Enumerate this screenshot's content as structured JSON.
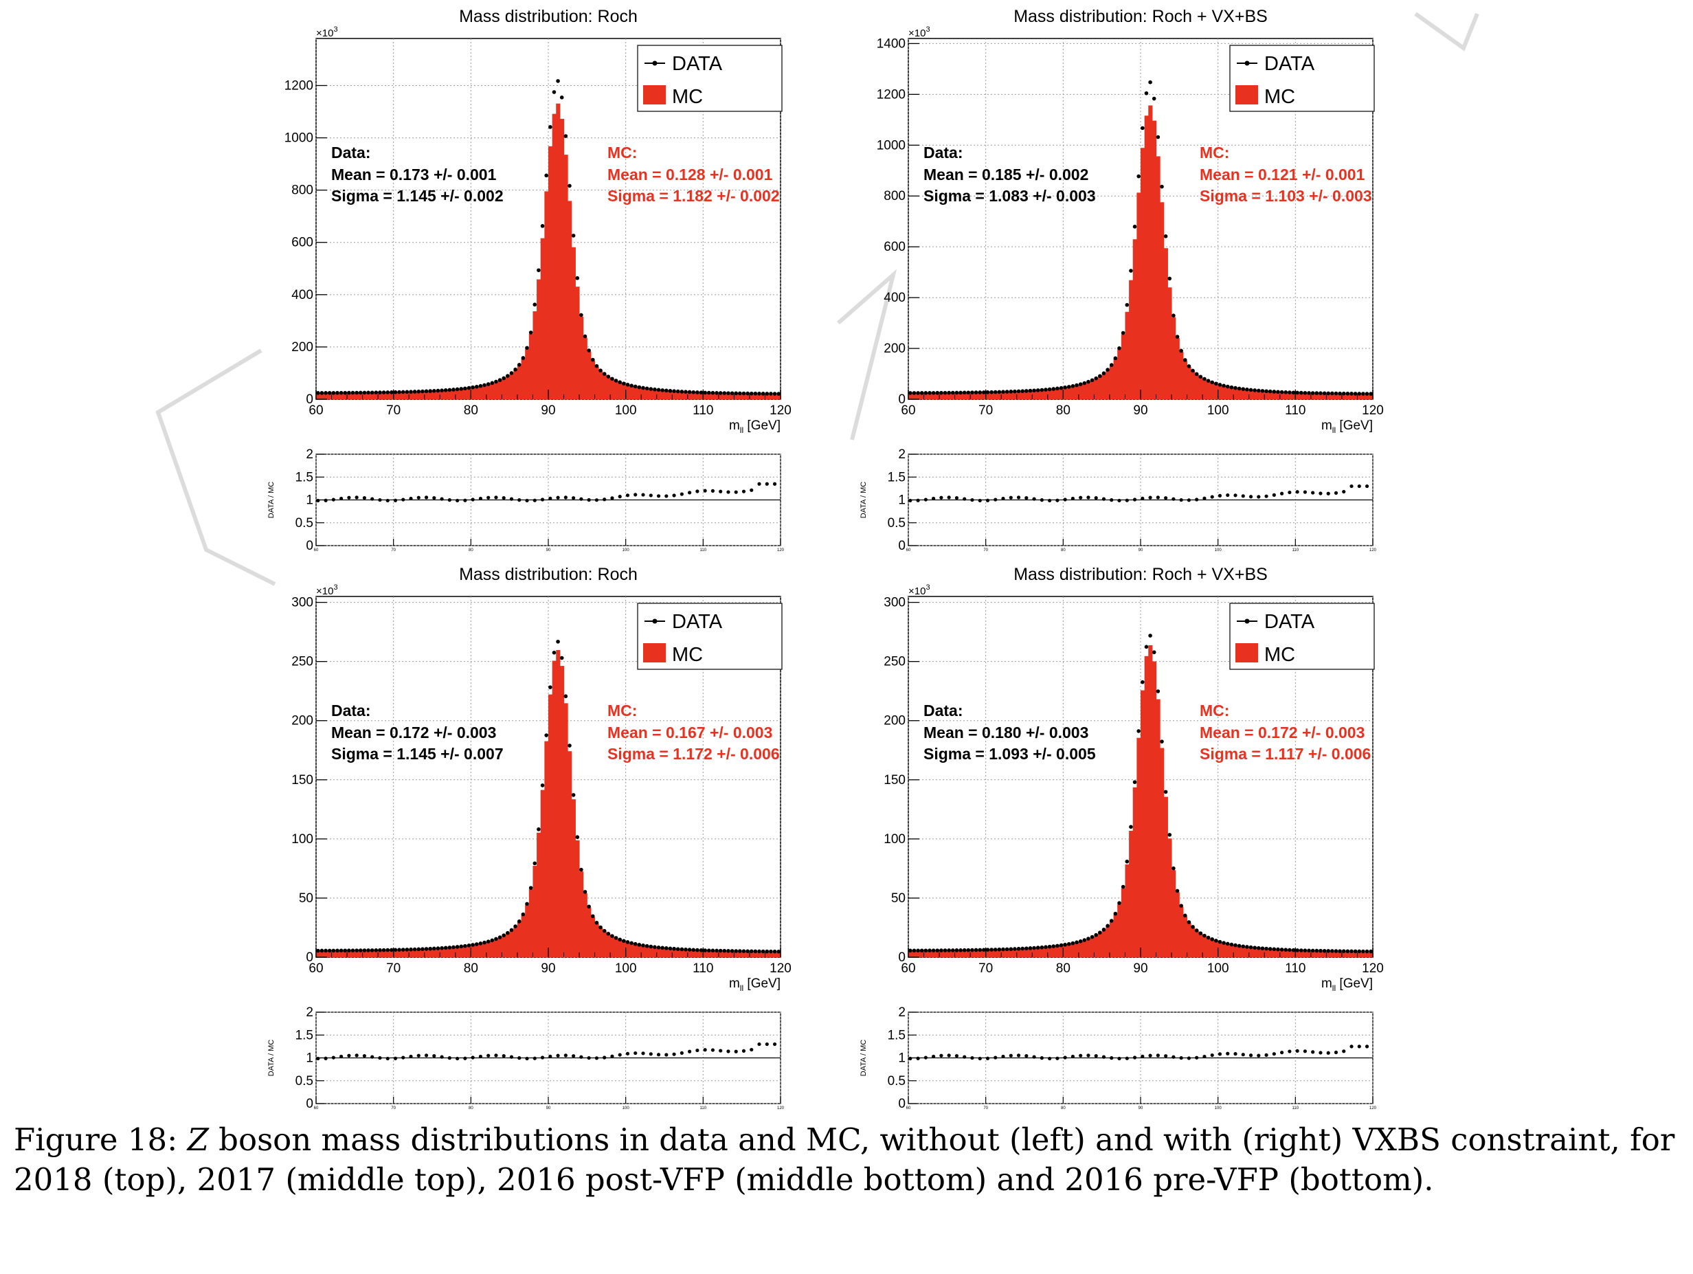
{
  "chart_data": [
    {
      "type": "bar",
      "title": "Mass distribution: Roch",
      "xlabel_main": "m",
      "xlabel_sub": "ll",
      "xlabel_unit": " [GeV]",
      "xticks": [
        "60",
        "70",
        "80",
        "90",
        "100",
        "110",
        "120"
      ],
      "xlim": [
        60,
        120
      ],
      "yticks": [
        "0",
        "200",
        "400",
        "600",
        "800",
        "1000",
        "1200"
      ],
      "ylim": [
        0,
        1380
      ],
      "yexp": "×10",
      "yexp_power": "3",
      "peak_data": 1200,
      "peak_mc": 1115,
      "series": [
        {
          "name": "DATA"
        },
        {
          "name": "MC"
        }
      ],
      "stats_data": {
        "title": "Data:",
        "mean": "Mean = 0.173 +/- 0.001",
        "sigma": "Sigma = 1.145 +/- 0.002"
      },
      "stats_mc": {
        "title": "MC:",
        "mean": "Mean = 0.128 +/- 0.001",
        "sigma": "Sigma = 1.182 +/- 0.002"
      },
      "ratio": {
        "ylabel": "DATA / MC",
        "yticks": [
          "0",
          "0.5",
          "1",
          "1.5",
          "2"
        ],
        "ylim": [
          0,
          2
        ],
        "high_end": 1.35
      }
    },
    {
      "type": "bar",
      "title": "Mass distribution: Roch + VX+BS",
      "xlabel_main": "m",
      "xlabel_sub": "ll",
      "xlabel_unit": " [GeV]",
      "xticks": [
        "60",
        "70",
        "80",
        "90",
        "100",
        "110",
        "120"
      ],
      "xlim": [
        60,
        120
      ],
      "yticks": [
        "0",
        "200",
        "400",
        "600",
        "800",
        "1000",
        "1200",
        "1400"
      ],
      "ylim": [
        0,
        1420
      ],
      "yexp": "×10",
      "yexp_power": "3",
      "peak_data": 1230,
      "peak_mc": 1140,
      "series": [
        {
          "name": "DATA"
        },
        {
          "name": "MC"
        }
      ],
      "stats_data": {
        "title": "Data:",
        "mean": "Mean = 0.185 +/- 0.002",
        "sigma": "Sigma = 1.083 +/- 0.003"
      },
      "stats_mc": {
        "title": "MC:",
        "mean": "Mean = 0.121 +/- 0.001",
        "sigma": "Sigma = 1.103 +/- 0.003"
      },
      "ratio": {
        "ylabel": "DATA / MC",
        "yticks": [
          "0",
          "0.5",
          "1",
          "1.5",
          "2"
        ],
        "ylim": [
          0,
          2
        ],
        "high_end": 1.3
      }
    },
    {
      "type": "bar",
      "title": "Mass distribution: Roch",
      "xlabel_main": "m",
      "xlabel_sub": "ll",
      "xlabel_unit": " [GeV]",
      "xticks": [
        "60",
        "70",
        "80",
        "90",
        "100",
        "110",
        "120"
      ],
      "xlim": [
        60,
        120
      ],
      "yticks": [
        "0",
        "50",
        "100",
        "150",
        "200",
        "250",
        "300"
      ],
      "ylim": [
        0,
        305
      ],
      "yexp": "×10",
      "yexp_power": "3",
      "peak_data": 263,
      "peak_mc": 256,
      "series": [
        {
          "name": "DATA"
        },
        {
          "name": "MC"
        }
      ],
      "stats_data": {
        "title": "Data:",
        "mean": "Mean = 0.172 +/- 0.003",
        "sigma": "Sigma = 1.145 +/- 0.007"
      },
      "stats_mc": {
        "title": "MC:",
        "mean": "Mean = 0.167 +/- 0.003",
        "sigma": "Sigma = 1.172 +/- 0.006"
      },
      "ratio": {
        "ylabel": "DATA / MC",
        "yticks": [
          "0",
          "0.5",
          "1",
          "1.5",
          "2"
        ],
        "ylim": [
          0,
          2
        ],
        "high_end": 1.3
      }
    },
    {
      "type": "bar",
      "title": "Mass distribution: Roch + VX+BS",
      "xlabel_main": "m",
      "xlabel_sub": "ll",
      "xlabel_unit": " [GeV]",
      "xticks": [
        "60",
        "70",
        "80",
        "90",
        "100",
        "110",
        "120"
      ],
      "xlim": [
        60,
        120
      ],
      "yticks": [
        "0",
        "50",
        "100",
        "150",
        "200",
        "250",
        "300"
      ],
      "ylim": [
        0,
        305
      ],
      "yexp": "×10",
      "yexp_power": "3",
      "peak_data": 268,
      "peak_mc": 260,
      "series": [
        {
          "name": "DATA"
        },
        {
          "name": "MC"
        }
      ],
      "stats_data": {
        "title": "Data:",
        "mean": "Mean = 0.180 +/- 0.003",
        "sigma": "Sigma = 1.093 +/- 0.005"
      },
      "stats_mc": {
        "title": "MC:",
        "mean": "Mean = 0.172 +/- 0.003",
        "sigma": "Sigma = 1.117 +/- 0.006"
      },
      "ratio": {
        "ylabel": "DATA / MC",
        "yticks": [
          "0",
          "0.5",
          "1",
          "1.5",
          "2"
        ],
        "ylim": [
          0,
          2
        ],
        "high_end": 1.25
      }
    }
  ],
  "caption": {
    "label": "Figure 18:",
    "z": "Z",
    "text": " boson mass distributions in data and MC, without (left) and with (right) VXBS constraint, for 2018 (top), 2017 (middle top), 2016 post-VFP (middle bottom) and 2016 pre-VFP (bottom)."
  },
  "colors": {
    "mc": "#e8321f",
    "data": "#000000",
    "stats_mc": "#e8321f"
  }
}
